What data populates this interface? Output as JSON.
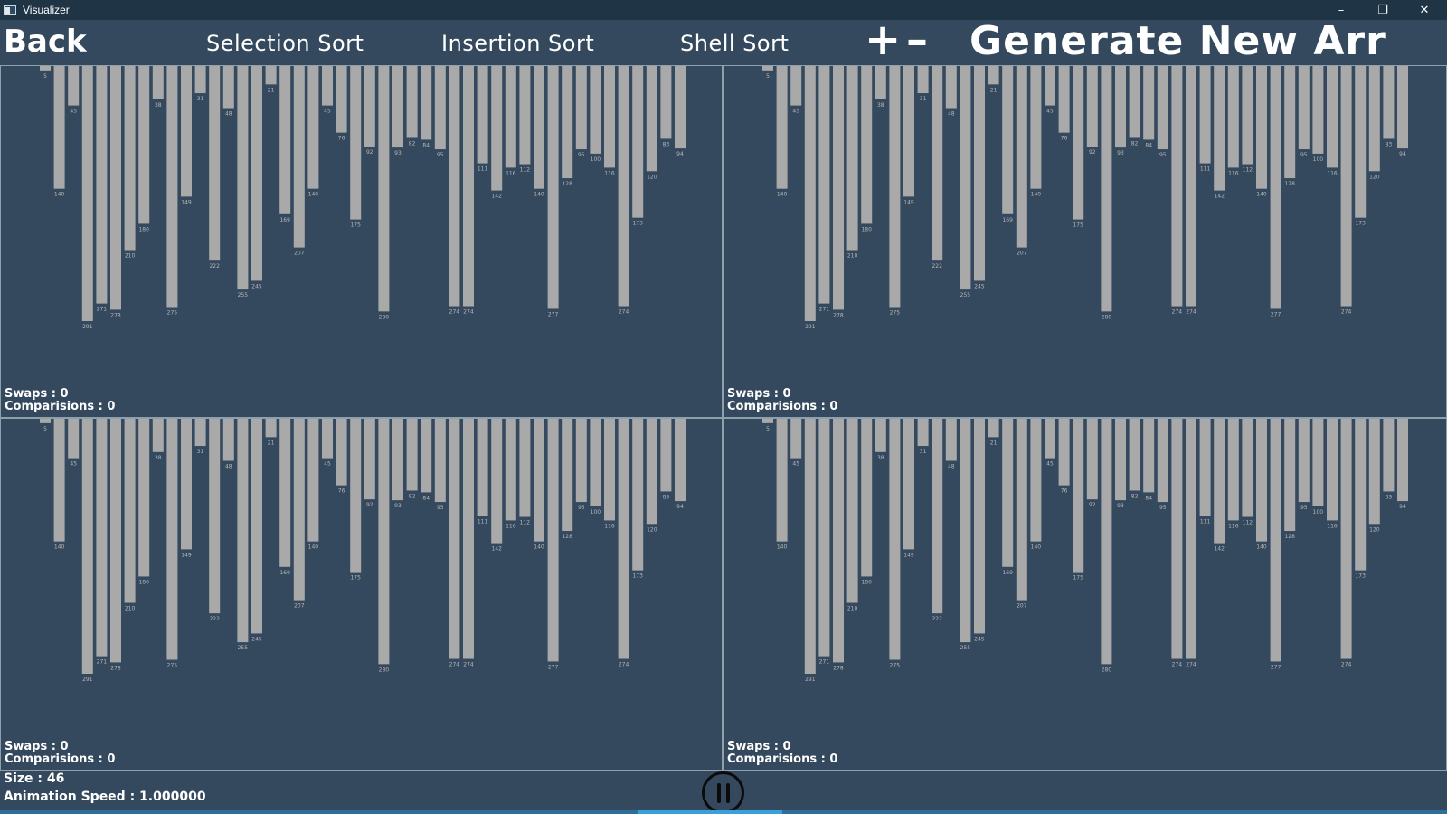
{
  "window": {
    "title": "Visualizer",
    "controls": [
      "–",
      "❐",
      "✕"
    ]
  },
  "menu": {
    "back": "Back",
    "selection_sort": "Selection Sort",
    "insertion_sort": "Insertion Sort",
    "shell_sort": "Shell Sort",
    "plus": "+",
    "minus": "–",
    "generate": "Generate New Arr"
  },
  "array": {
    "values": [
      5,
      140,
      45,
      291,
      271,
      278,
      210,
      180,
      38,
      275,
      149,
      31,
      222,
      48,
      255,
      245,
      21,
      169,
      207,
      140,
      45,
      76,
      175,
      92,
      280,
      93,
      82,
      84,
      95,
      274,
      274,
      111,
      142,
      116,
      112,
      140,
      277,
      128,
      95,
      100,
      116,
      274,
      173,
      120,
      83,
      94
    ],
    "max_value": 291,
    "bar_color": "#a9a9a9",
    "label_color": "#b7b7b7"
  },
  "panels": [
    {
      "swaps_label": "Swaps : 0",
      "comparisons_label": "Comparisions : 0"
    },
    {
      "swaps_label": "Swaps : 0",
      "comparisons_label": "Comparisions : 0"
    },
    {
      "swaps_label": "Swaps : 0",
      "comparisons_label": "Comparisions : 0"
    },
    {
      "swaps_label": "Swaps : 0",
      "comparisons_label": "Comparisions : 0"
    }
  ],
  "footer": {
    "size": "Size : 46",
    "speed": "Animation Speed : 1.000000"
  },
  "colors": {
    "background": "#34495e",
    "titlebar": "#1f3445",
    "panel_border": "#8fa0ad"
  }
}
